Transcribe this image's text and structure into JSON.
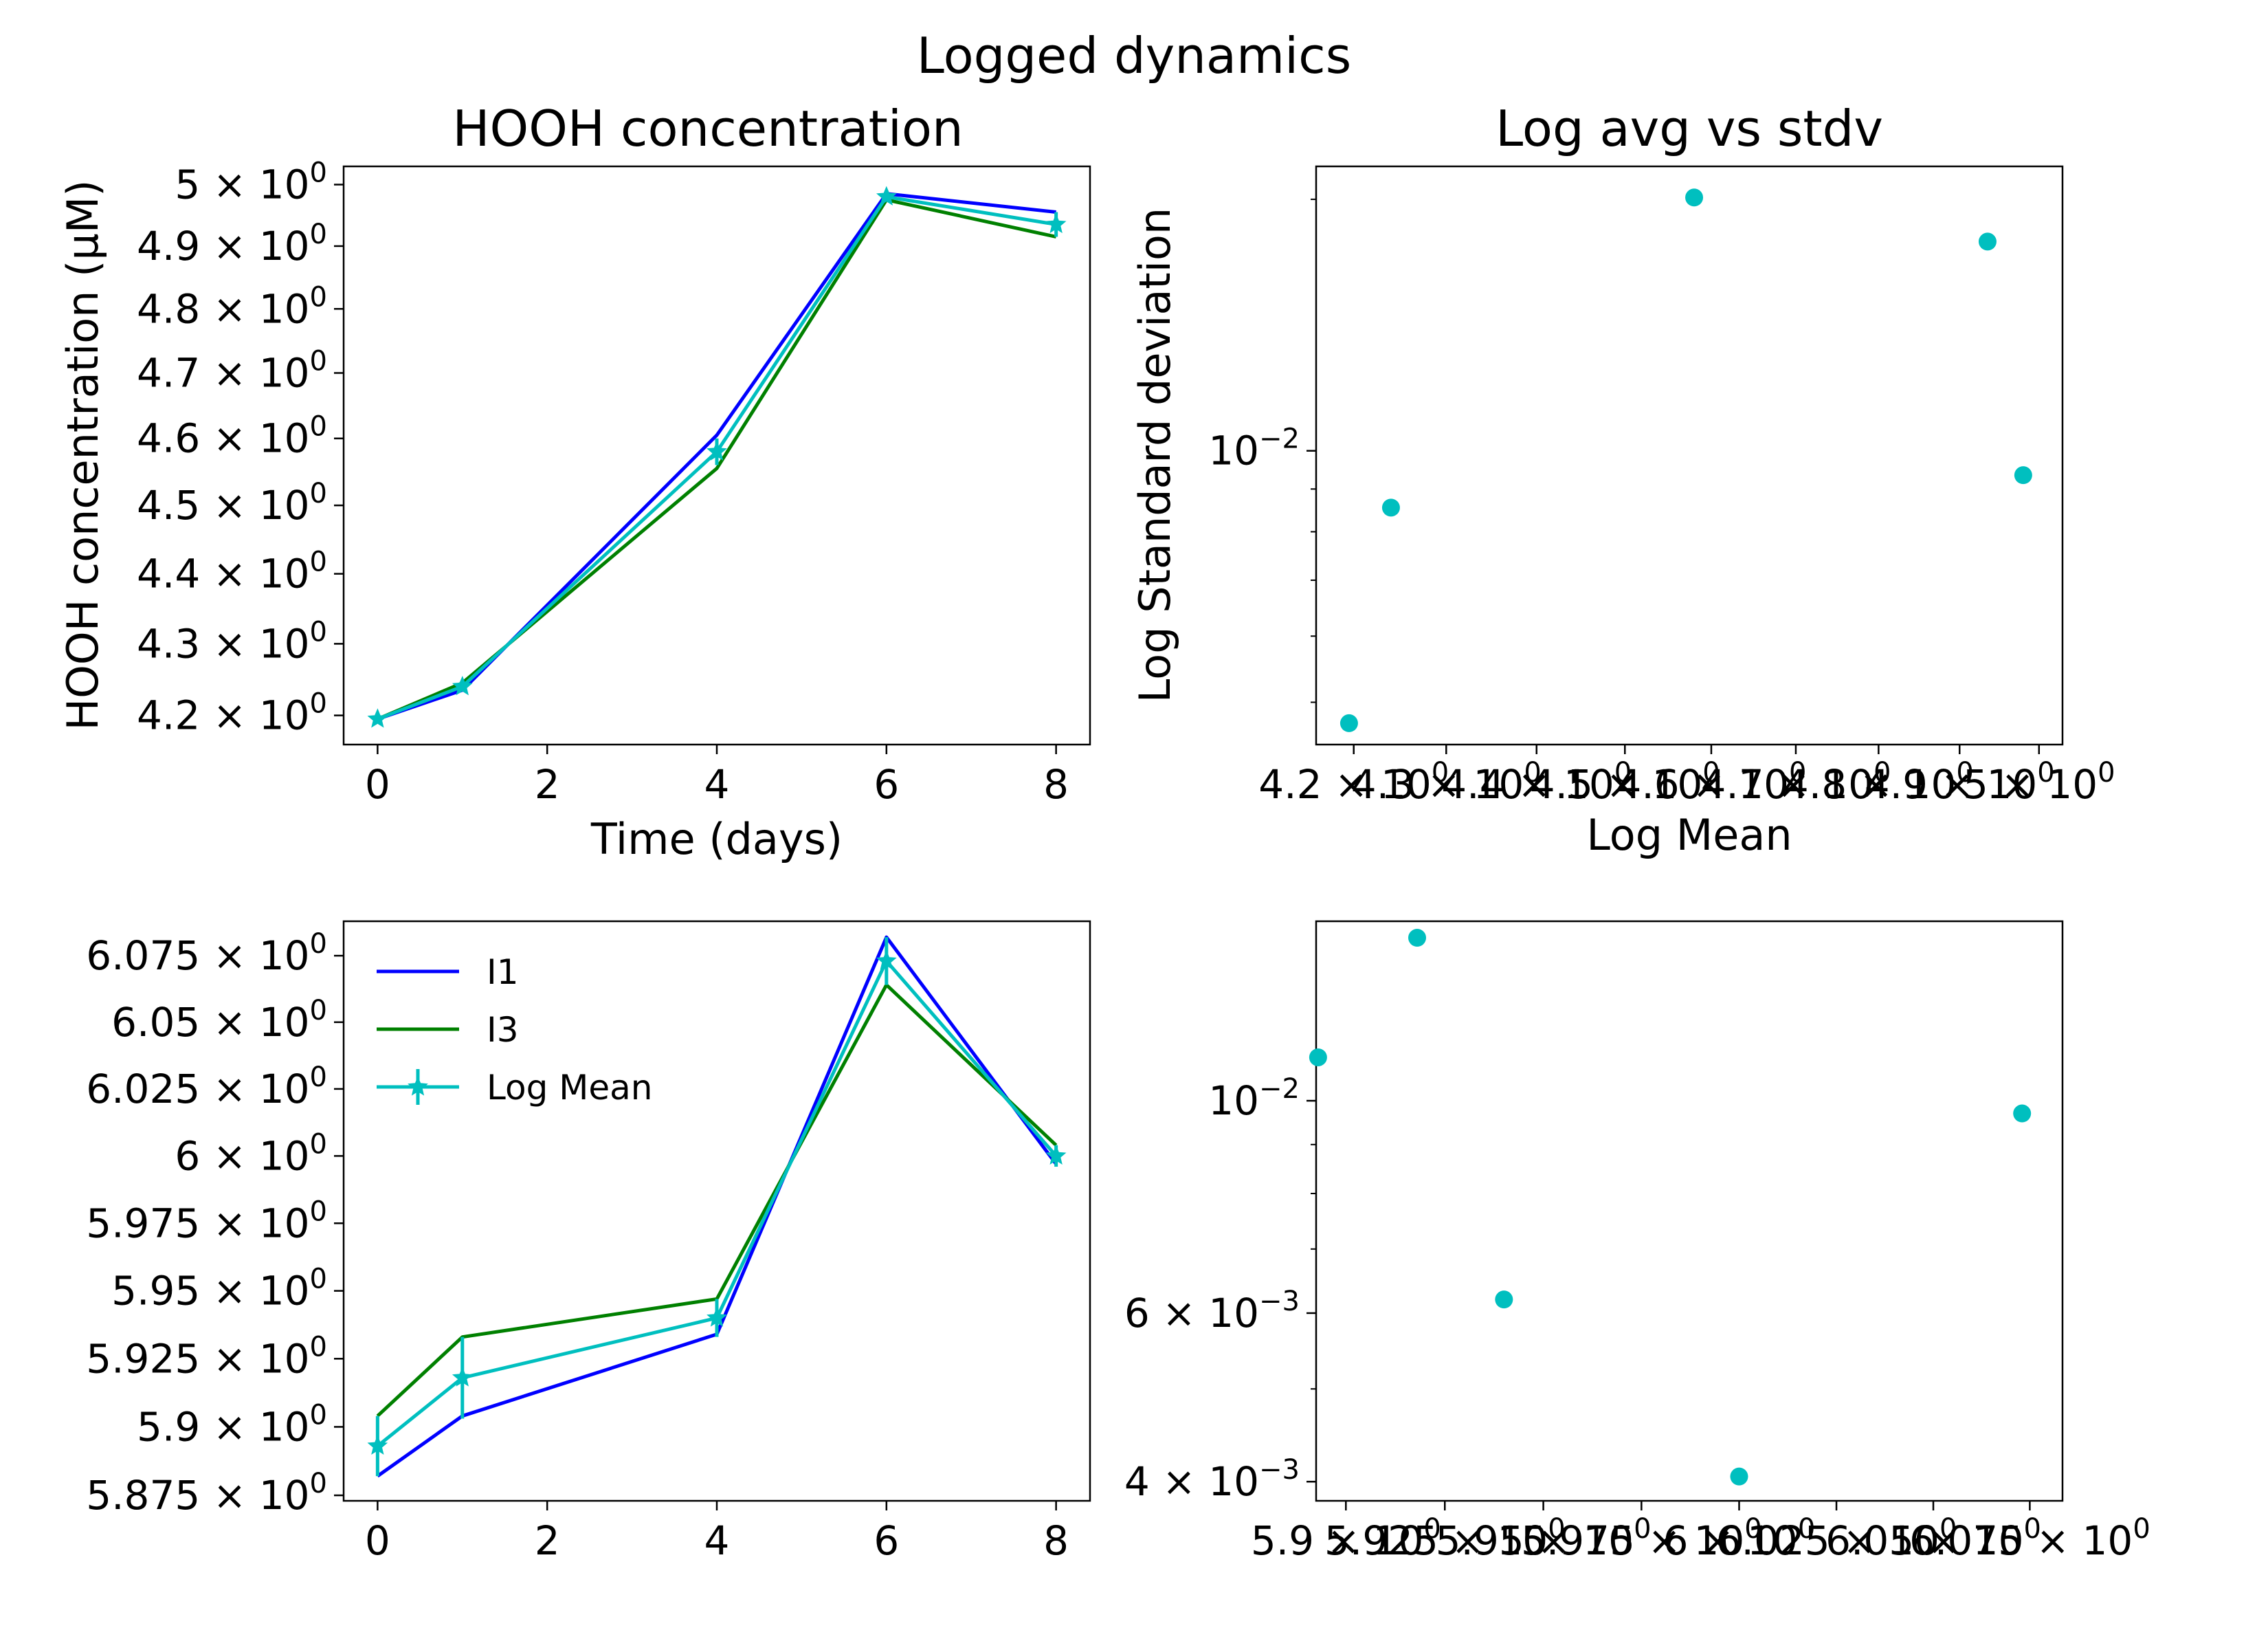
{
  "figure": {
    "suptitle": "Logged dynamics"
  },
  "colors": {
    "I1": "#0000ff",
    "I3": "#008000",
    "mean": "#00bfbf"
  },
  "chart_data": [
    {
      "id": "p1",
      "type": "line",
      "title": "HOOH concentration",
      "xlabel": "Time (days)",
      "ylabel": "HOOH concentration (µM)",
      "x": [
        0,
        1,
        4,
        6,
        8
      ],
      "xlim": [
        -0.4,
        8.4
      ],
      "ylim": [
        4.16,
        5.03
      ],
      "yscale": "log",
      "xticks": [
        0,
        2,
        4,
        6,
        8
      ],
      "yticks": [
        {
          "value": 4.2,
          "mantissa": "4.2"
        },
        {
          "value": 4.3,
          "mantissa": "4.3"
        },
        {
          "value": 4.4,
          "mantissa": "4.4"
        },
        {
          "value": 4.5,
          "mantissa": "4.5"
        },
        {
          "value": 4.6,
          "mantissa": "4.6"
        },
        {
          "value": 4.7,
          "mantissa": "4.7"
        },
        {
          "value": 4.8,
          "mantissa": "4.8"
        },
        {
          "value": 4.9,
          "mantissa": "4.9"
        },
        {
          "value": 5.0,
          "mantissa": "5"
        }
      ],
      "series": [
        {
          "name": "I1",
          "color": "#0000ff",
          "values": [
            4.195,
            4.235,
            4.605,
            4.985,
            4.955
          ]
        },
        {
          "name": "I3",
          "color": "#008000",
          "values": [
            4.195,
            4.245,
            4.555,
            4.975,
            4.915
          ]
        },
        {
          "name": "Log Mean",
          "color": "#00bfbf",
          "values": [
            4.195,
            4.24,
            4.58,
            4.98,
            4.935
          ],
          "err": [
            0.002,
            0.002,
            0.02,
            0.004,
            0.02
          ]
        }
      ]
    },
    {
      "id": "p2",
      "type": "scatter",
      "title": "Log avg vs stdv",
      "xlabel": "Log Mean",
      "ylabel": "Log Standard deviation",
      "xscale": "log",
      "yscale": "log",
      "xlim": [
        4.16,
        5.03
      ],
      "ylim": [
        0.00445,
        0.0219
      ],
      "xticks": [
        {
          "value": 4.2,
          "mantissa": "4.2"
        },
        {
          "value": 4.3,
          "mantissa": "4.3"
        },
        {
          "value": 4.4,
          "mantissa": "4.4"
        },
        {
          "value": 4.5,
          "mantissa": "4.5"
        },
        {
          "value": 4.6,
          "mantissa": "4.6"
        },
        {
          "value": 4.7,
          "mantissa": "4.7"
        },
        {
          "value": 4.8,
          "mantissa": "4.8"
        },
        {
          "value": 4.9,
          "mantissa": "4.9"
        },
        {
          "value": 5.0,
          "mantissa": "5"
        }
      ],
      "yticks": [
        {
          "value": 0.01,
          "label": "10",
          "exp": "−2"
        }
      ],
      "points": [
        {
          "x": 4.195,
          "y": 0.00472
        },
        {
          "x": 4.24,
          "y": 0.00855
        },
        {
          "x": 4.58,
          "y": 0.0201
        },
        {
          "x": 4.935,
          "y": 0.0178
        },
        {
          "x": 4.98,
          "y": 0.00935
        }
      ]
    },
    {
      "id": "p3",
      "type": "line",
      "title": "",
      "xlabel": "",
      "ylabel": "",
      "x": [
        0,
        1,
        4,
        6,
        8
      ],
      "xlim": [
        -0.4,
        8.4
      ],
      "ylim": [
        5.873,
        6.088
      ],
      "yscale": "log",
      "xticks": [
        0,
        2,
        4,
        6,
        8
      ],
      "yticks": [
        {
          "value": 5.875,
          "mantissa": "5.875"
        },
        {
          "value": 5.9,
          "mantissa": "5.9"
        },
        {
          "value": 5.925,
          "mantissa": "5.925"
        },
        {
          "value": 5.95,
          "mantissa": "5.95"
        },
        {
          "value": 5.975,
          "mantissa": "5.975"
        },
        {
          "value": 6.0,
          "mantissa": "6"
        },
        {
          "value": 6.025,
          "mantissa": "6.025"
        },
        {
          "value": 6.05,
          "mantissa": "6.05"
        },
        {
          "value": 6.075,
          "mantissa": "6.075"
        }
      ],
      "legend": "upper left",
      "series": [
        {
          "name": "I1",
          "color": "#0000ff",
          "values": [
            5.882,
            5.904,
            5.934,
            6.082,
            5.997
          ]
        },
        {
          "name": "I3",
          "color": "#008000",
          "values": [
            5.904,
            5.933,
            5.947,
            6.064,
            6.004
          ]
        },
        {
          "name": "Log Mean",
          "color": "#00bfbf",
          "values": [
            5.893,
            5.918,
            5.94,
            6.073,
            6.0
          ],
          "err": [
            0.011,
            0.015,
            0.007,
            0.009,
            0.004
          ]
        }
      ]
    },
    {
      "id": "p4",
      "type": "scatter",
      "title": "",
      "xlabel": "",
      "ylabel": "",
      "xscale": "log",
      "yscale": "log",
      "xlim": [
        5.8925,
        6.0835
      ],
      "ylim": [
        0.00382,
        0.0154
      ],
      "xticks": [
        {
          "value": 5.9,
          "mantissa": "5.9"
        },
        {
          "value": 5.925,
          "mantissa": "5.925"
        },
        {
          "value": 5.95,
          "mantissa": "5.95"
        },
        {
          "value": 5.975,
          "mantissa": "5.975"
        },
        {
          "value": 6.0,
          "mantissa": "6"
        },
        {
          "value": 6.025,
          "mantissa": "6.025"
        },
        {
          "value": 6.05,
          "mantissa": "6.05"
        },
        {
          "value": 6.075,
          "mantissa": "6.075"
        }
      ],
      "yticks": [
        {
          "value": 0.004,
          "label": "4 × 10",
          "exp": "−3"
        },
        {
          "value": 0.006,
          "label": "6 × 10",
          "exp": "−3"
        },
        {
          "value": 0.01,
          "label": "10",
          "exp": "−2"
        }
      ],
      "points": [
        {
          "x": 5.893,
          "y": 0.0111
        },
        {
          "x": 5.918,
          "y": 0.0148
        },
        {
          "x": 5.94,
          "y": 0.0062
        },
        {
          "x": 6.0,
          "y": 0.00405
        },
        {
          "x": 6.073,
          "y": 0.0097
        }
      ]
    }
  ]
}
